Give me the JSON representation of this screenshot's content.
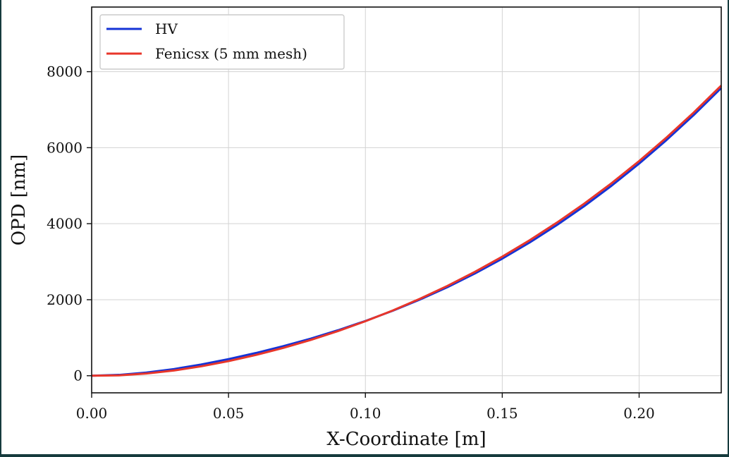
{
  "chart_data": {
    "type": "line",
    "title": "",
    "xlabel": "X-Coordinate [m]",
    "ylabel": "OPD [nm]",
    "xlim": [
      0.0,
      0.23
    ],
    "ylim": [
      -450,
      9700
    ],
    "xticks": [
      0.0,
      0.05,
      0.1,
      0.15,
      0.2
    ],
    "xtick_labels": [
      "0.00",
      "0.05",
      "0.10",
      "0.15",
      "0.20"
    ],
    "yticks": [
      0,
      2000,
      4000,
      6000,
      8000
    ],
    "ytick_labels": [
      "0",
      "2000",
      "4000",
      "6000",
      "8000"
    ],
    "grid": true,
    "legend_position": "top-left",
    "series": [
      {
        "name": "HV",
        "color": "#1533d6",
        "x": [
          0.0,
          0.01,
          0.02,
          0.03,
          0.04,
          0.05,
          0.06,
          0.07,
          0.08,
          0.09,
          0.1,
          0.11,
          0.12,
          0.13,
          0.14,
          0.15,
          0.16,
          0.17,
          0.18,
          0.19,
          0.2,
          0.21,
          0.22,
          0.23
        ],
        "values": [
          0,
          22,
          83,
          175,
          295,
          437,
          598,
          778,
          976,
          1197,
          1440,
          1709,
          2006,
          2331,
          2689,
          3080,
          3505,
          3966,
          4465,
          5003,
          5581,
          6201,
          6863,
          7570
        ]
      },
      {
        "name": "Fenicsx (5 mm mesh)",
        "color": "#e8362a",
        "x": [
          0.0,
          0.01,
          0.02,
          0.03,
          0.04,
          0.05,
          0.06,
          0.07,
          0.08,
          0.09,
          0.1,
          0.11,
          0.12,
          0.13,
          0.14,
          0.15,
          0.16,
          0.17,
          0.18,
          0.19,
          0.2,
          0.21,
          0.22,
          0.23
        ],
        "values": [
          0,
          10,
          57,
          137,
          247,
          384,
          546,
          732,
          941,
          1175,
          1433,
          1717,
          2027,
          2365,
          2733,
          3133,
          3564,
          4030,
          4531,
          5070,
          5648,
          6268,
          6929,
          7635
        ]
      }
    ]
  }
}
